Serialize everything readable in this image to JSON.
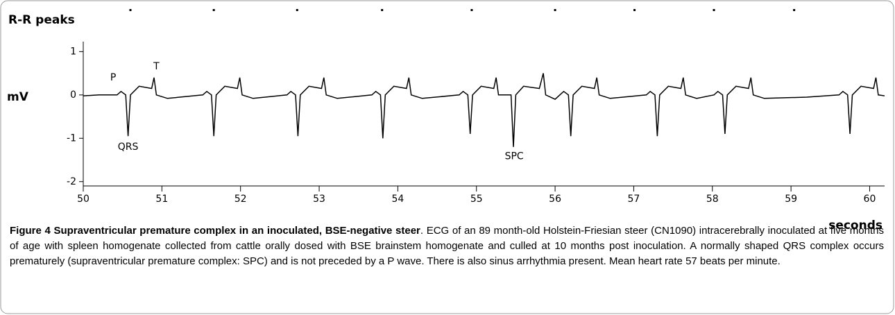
{
  "chart_data": {
    "type": "line",
    "title": "R-R peaks",
    "ylabel": "mV",
    "xlabel": "seconds",
    "xlim": [
      50,
      60.19
    ],
    "ylim": [
      -2.1,
      1.23
    ],
    "xticks": [
      50,
      51,
      52,
      53,
      54,
      55,
      56,
      57,
      58,
      59,
      60
    ],
    "yticks": [
      1,
      0,
      -1,
      -2
    ],
    "rr_peaks": [
      50.6,
      51.66,
      52.72,
      53.8,
      54.94,
      56.0,
      57.01,
      58.02,
      59.04
    ],
    "annotations": [
      {
        "text": "P",
        "x": 50.38,
        "y": 0.4
      },
      {
        "text": "T",
        "x": 50.93,
        "y": 0.65
      },
      {
        "text": "QRS",
        "x": 50.57,
        "y": -1.2
      },
      {
        "text": "SPC",
        "x": 55.48,
        "y": -1.42
      }
    ],
    "series": [
      {
        "color": "#000000",
        "x": [
          50.0,
          50.2,
          50.43,
          50.48,
          50.54,
          50.57,
          50.6,
          50.71,
          50.87,
          50.9,
          50.93,
          51.07,
          51.52,
          51.57,
          51.63,
          51.66,
          51.69,
          51.8,
          51.96,
          51.99,
          52.02,
          52.16,
          52.59,
          52.64,
          52.7,
          52.73,
          52.76,
          52.87,
          53.03,
          53.06,
          53.09,
          53.23,
          53.67,
          53.72,
          53.78,
          53.81,
          53.84,
          53.95,
          54.11,
          54.14,
          54.17,
          54.31,
          54.78,
          54.83,
          54.89,
          54.92,
          54.95,
          55.06,
          55.22,
          55.25,
          55.28,
          55.44,
          55.47,
          55.5,
          55.6,
          55.8,
          55.85,
          55.88,
          56.0,
          56.06,
          56.11,
          56.17,
          56.2,
          56.23,
          56.34,
          56.5,
          56.53,
          56.56,
          56.7,
          57.16,
          57.21,
          57.27,
          57.3,
          57.33,
          57.44,
          57.6,
          57.63,
          57.66,
          57.8,
          58.02,
          58.07,
          58.13,
          58.16,
          58.19,
          58.3,
          58.46,
          58.49,
          58.52,
          58.66,
          59.2,
          59.61,
          59.66,
          59.72,
          59.75,
          59.78,
          59.89,
          60.05,
          60.08,
          60.11,
          60.19
        ],
        "values": [
          -0.02,
          0.0,
          0,
          0.08,
          0,
          -0.95,
          0,
          0.2,
          0.15,
          0.4,
          0,
          -0.08,
          0,
          0.08,
          0,
          -0.95,
          0,
          0.2,
          0.15,
          0.4,
          0,
          -0.08,
          0,
          0.08,
          0,
          -0.95,
          0,
          0.2,
          0.15,
          0.4,
          0,
          -0.08,
          0,
          0.08,
          0,
          -1.0,
          0,
          0.2,
          0.15,
          0.4,
          0,
          -0.08,
          0,
          0.08,
          0,
          -0.9,
          0,
          0.2,
          0.15,
          0.4,
          0,
          0,
          -1.2,
          0,
          0.2,
          0.15,
          0.5,
          0,
          -0.1,
          0,
          0.08,
          0,
          -0.95,
          0,
          0.2,
          0.15,
          0.4,
          0,
          -0.08,
          0,
          0.08,
          0,
          -0.95,
          0,
          0.2,
          0.15,
          0.4,
          0,
          -0.08,
          0,
          0.08,
          0,
          -0.9,
          0,
          0.2,
          0.15,
          0.4,
          0,
          -0.08,
          -0.05,
          0,
          0.08,
          0,
          -0.9,
          0,
          0.2,
          0.15,
          0.4,
          0,
          -0.02
        ]
      }
    ]
  },
  "caption": {
    "label": "Figure 4 Supraventricular premature complex in an inoculated, BSE-negative steer",
    "text": ". ECG of an 89 month-old Holstein-Friesian steer (CN1090) intracerebrally inoculated at five months of age with spleen homogenate collected from cattle orally dosed with BSE brainstem homogenate and culled at 10 months post inoculation. A normally shaped QRS complex occurs prematurely (supraventricular premature complex: SPC) and is not preceded by a P wave. There is also sinus arrhythmia present. Mean heart rate 57 beats per minute."
  }
}
